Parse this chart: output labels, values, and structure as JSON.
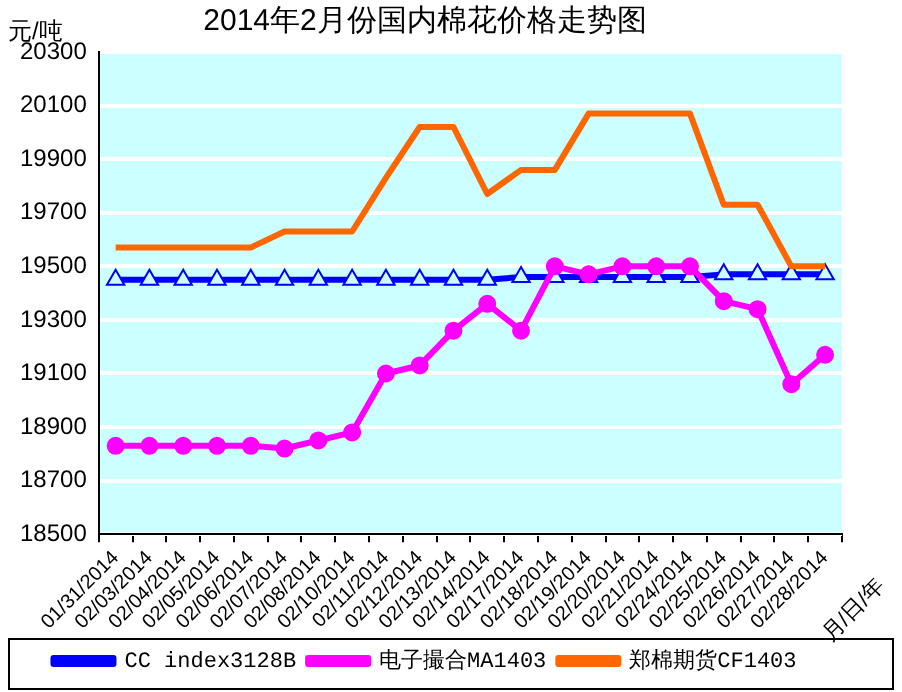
{
  "chart_data": {
    "type": "line",
    "title": "2014年2月份国内棉花价格走势图",
    "ylabel": "元/吨",
    "xlabel": "月/日/年",
    "categories": [
      "01/31/2014",
      "02/03/2014",
      "02/04/2014",
      "02/05/2014",
      "02/06/2014",
      "02/07/2014",
      "02/08/2014",
      "02/10/2014",
      "02/11/2014",
      "02/12/2014",
      "02/13/2014",
      "02/14/2014",
      "02/17/2014",
      "02/18/2014",
      "02/19/2014",
      "02/20/2014",
      "02/21/2014",
      "02/24/2014",
      "02/25/2014",
      "02/26/2014",
      "02/27/2014",
      "02/28/2014"
    ],
    "series": [
      {
        "name": "CC index3128B",
        "color": "#0000ff",
        "marker": "triangle",
        "values": [
          19450,
          19450,
          19450,
          19450,
          19450,
          19450,
          19450,
          19450,
          19450,
          19450,
          19450,
          19450,
          19460,
          19460,
          19460,
          19460,
          19460,
          19460,
          19470,
          19470,
          19470,
          19470
        ]
      },
      {
        "name": "电子撮合MA1403",
        "color": "#ff00ff",
        "marker": "circle",
        "values": [
          18830,
          18830,
          18830,
          18830,
          18830,
          18820,
          18850,
          18880,
          19100,
          19130,
          19260,
          19360,
          19260,
          19500,
          19470,
          19500,
          19500,
          19500,
          19370,
          19340,
          19060,
          19170
        ]
      },
      {
        "name": "郑棉期货CF1403",
        "color": "#ff6600",
        "marker": "none",
        "values": [
          19570,
          19570,
          19570,
          19570,
          19570,
          19630,
          19630,
          19630,
          19830,
          20020,
          20020,
          19770,
          19860,
          19860,
          20070,
          20070,
          20070,
          20070,
          19730,
          19730,
          19500,
          19500
        ]
      }
    ],
    "ylim": [
      18500,
      20300
    ],
    "yticks": [
      18500,
      18700,
      18900,
      19100,
      19300,
      19500,
      19700,
      19900,
      20100,
      20300
    ],
    "grid": "y",
    "legend": "bottom"
  }
}
